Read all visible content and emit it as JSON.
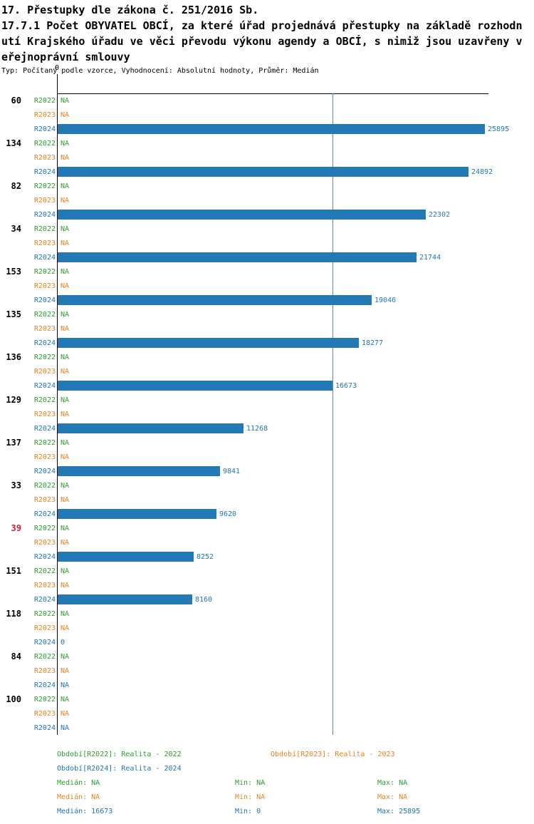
{
  "title": {
    "line1": "17. Přestupky dle zákona č. 251/2016 Sb.",
    "line2": "17.7.1 Počet OBYVATEL OBCÍ, za které úřad projednává přestupky na základě rozhodn",
    "line3": "utí Krajského úřadu ve věci převodu výkonu agendy a OBCÍ, s nimiž jsou uzavřeny v",
    "line4": "eřejnoprávní smlouvy",
    "subtitle": "Typ: Počítaný podle vzorce, Vyhodnocení: Absolutní hodnoty, Průměr: Medián"
  },
  "chart_data": {
    "type": "bar",
    "orientation": "horizontal",
    "axis_zero_label": "0",
    "categories": [
      "60",
      "134",
      "82",
      "34",
      "153",
      "135",
      "136",
      "129",
      "137",
      "33",
      "39",
      "151",
      "118",
      "84",
      "100"
    ],
    "highlighted_category": "39",
    "series": [
      {
        "name": "R2022",
        "values": [
          "NA",
          "NA",
          "NA",
          "NA",
          "NA",
          "NA",
          "NA",
          "NA",
          "NA",
          "NA",
          "NA",
          "NA",
          "NA",
          "NA",
          "NA"
        ]
      },
      {
        "name": "R2023",
        "values": [
          "NA",
          "NA",
          "NA",
          "NA",
          "NA",
          "NA",
          "NA",
          "NA",
          "NA",
          "NA",
          "NA",
          "NA",
          "NA",
          "NA",
          "NA"
        ]
      },
      {
        "name": "R2024",
        "values": [
          25895,
          24892,
          22302,
          21744,
          19046,
          18277,
          16673,
          11268,
          9841,
          9620,
          8252,
          8160,
          0,
          "NA",
          "NA"
        ]
      }
    ],
    "xlim": [
      0,
      25895
    ],
    "median_line_value": 16673,
    "grid": "single-vertical-median-line",
    "legend_position": "bottom",
    "colors": {
      "r2022": "#2E9E2E",
      "r2023": "#E8821E",
      "r2024": "#1F77B4",
      "bar": "#2478B4",
      "highlight": "#CC2233",
      "median_line": "#5B8DB8",
      "axis": "#000000"
    }
  },
  "footer": {
    "legend": [
      {
        "label": "Období[R2022]: Realita - 2022",
        "color": "green"
      },
      {
        "label": "Období[R2023]: Realita - 2023",
        "color": "orange"
      },
      {
        "label": "Období[R2024]: Realita - 2024",
        "color": "blue"
      }
    ],
    "stats": [
      {
        "color": "green",
        "median": "Medián: NA",
        "min": "Min: NA",
        "max": "Max: NA"
      },
      {
        "color": "orange",
        "median": "Medián: NA",
        "min": "Min: NA",
        "max": "Max: NA"
      },
      {
        "color": "blue",
        "median": "Medián: 16673",
        "min": "Min: 0",
        "max": "Max: 25895"
      }
    ]
  }
}
